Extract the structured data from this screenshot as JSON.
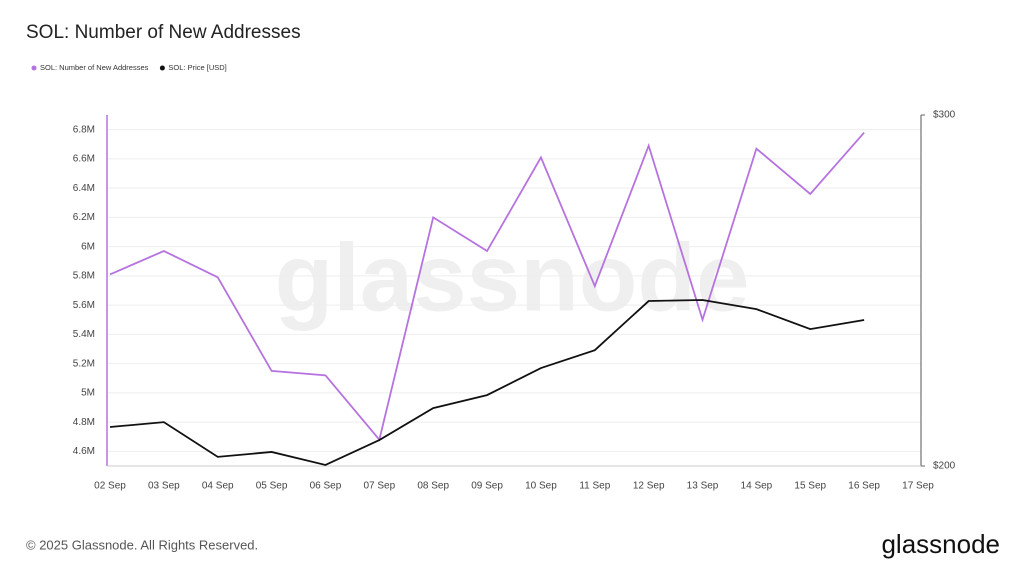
{
  "chart_data": {
    "type": "line",
    "title": "SOL: Number of New Addresses",
    "watermark": "glassnode",
    "footer": "© 2025 Glassnode. All Rights Reserved.",
    "logo": "glassnode",
    "categories": [
      "02 Sep",
      "03 Sep",
      "04 Sep",
      "05 Sep",
      "06 Sep",
      "07 Sep",
      "08 Sep",
      "09 Sep",
      "10 Sep",
      "11 Sep",
      "12 Sep",
      "13 Sep",
      "14 Sep",
      "15 Sep",
      "16 Sep",
      "17 Sep"
    ],
    "series": [
      {
        "name": "SOL: Number of New Addresses",
        "color": "#b673e0",
        "axis": "y",
        "values": [
          5810000,
          5970000,
          5790000,
          5150000,
          5120000,
          4680000,
          6200000,
          5970000,
          6610000,
          5730000,
          6690000,
          5500000,
          6670000,
          6360000,
          6780000,
          null
        ]
      },
      {
        "name": "SOL: Price [USD]",
        "color": "#111111",
        "axis": "y2",
        "values": [
          211.1,
          212.5,
          202.6,
          204.0,
          200.3,
          207.4,
          216.5,
          220.2,
          227.9,
          233.0,
          247.0,
          247.3,
          244.7,
          239.0,
          241.6,
          null
        ]
      }
    ],
    "ylim": [
      4500000,
      6900000
    ],
    "yticks": [
      {
        "value": 4600000,
        "label": "4.6M"
      },
      {
        "value": 4800000,
        "label": "4.8M"
      },
      {
        "value": 5000000,
        "label": "5M"
      },
      {
        "value": 5200000,
        "label": "5.2M"
      },
      {
        "value": 5400000,
        "label": "5.4M"
      },
      {
        "value": 5600000,
        "label": "5.6M"
      },
      {
        "value": 5800000,
        "label": "5.8M"
      },
      {
        "value": 6000000,
        "label": "6M"
      },
      {
        "value": 6200000,
        "label": "6.2M"
      },
      {
        "value": 6400000,
        "label": "6.4M"
      },
      {
        "value": 6600000,
        "label": "6.6M"
      },
      {
        "value": 6800000,
        "label": "6.8M"
      }
    ],
    "y2lim": [
      200,
      300
    ],
    "y2ticks": [
      {
        "value": 200,
        "label": "$200"
      },
      {
        "value": 300,
        "label": "$300"
      }
    ],
    "grid": true,
    "legend": "top-left"
  }
}
